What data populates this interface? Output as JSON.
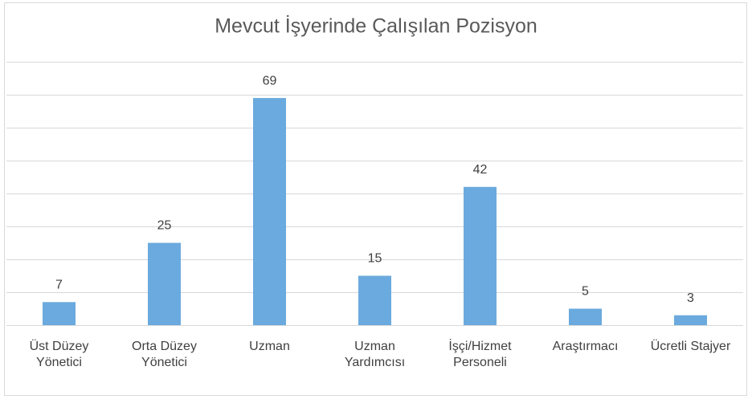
{
  "chart_data": {
    "type": "bar",
    "title": "Mevcut İşyerinde Çalışılan Pozisyon",
    "categories": [
      "Üst Düzey\nYönetici",
      "Orta Düzey\nYönetici",
      "Uzman",
      "Uzman\nYardımcısı",
      "İşçi/Hizmet\nPersoneli",
      "Araştırmacı",
      "Ücretli Stajyer"
    ],
    "values": [
      7,
      25,
      69,
      15,
      42,
      5,
      3
    ],
    "color": "#6aaade",
    "ylim": [
      0,
      80
    ],
    "yticks": [
      0,
      10,
      20,
      30,
      40,
      50,
      60,
      70,
      80
    ],
    "grid": true
  }
}
